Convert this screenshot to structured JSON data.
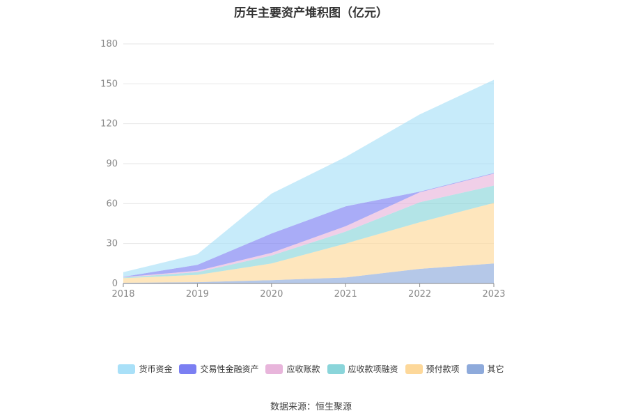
{
  "chart_data": {
    "type": "area",
    "stacked": true,
    "title": "历年主要资产堆积图（亿元）",
    "categories": [
      "2018",
      "2019",
      "2020",
      "2021",
      "2022",
      "2023"
    ],
    "ylim": [
      0,
      180
    ],
    "yticks": [
      0,
      30,
      60,
      90,
      120,
      150,
      180
    ],
    "grid": true,
    "legend_position": "bottom",
    "series": [
      {
        "name": "其它",
        "color": "#8eaadb",
        "values": [
          0.5,
          1.0,
          2.5,
          4.5,
          11.0,
          15.0
        ]
      },
      {
        "name": "预付款项",
        "color": "#fdd89a",
        "values": [
          3.5,
          5.5,
          12.5,
          25.5,
          35.0,
          45.5
        ]
      },
      {
        "name": "应收款项融资",
        "color": "#8ad5da",
        "values": [
          0.5,
          2.0,
          6.0,
          9.0,
          15.0,
          13.0
        ]
      },
      {
        "name": "应收账款",
        "color": "#e8b5db",
        "values": [
          0.3,
          1.0,
          2.0,
          4.0,
          7.5,
          9.0
        ]
      },
      {
        "name": "交易性金融资产",
        "color": "#7b7ff2",
        "values": [
          0.2,
          4.5,
          14.5,
          15.0,
          0.5,
          0.5
        ]
      },
      {
        "name": "货币资金",
        "color": "#a9e0f8",
        "values": [
          3.5,
          8.0,
          30.0,
          37.0,
          58.0,
          70.0
        ]
      }
    ],
    "legend_order": [
      "货币资金",
      "交易性金融资产",
      "应收账款",
      "应收款项融资",
      "预付款项",
      "其它"
    ]
  },
  "legend": {
    "items": [
      {
        "label": "货币资金",
        "color": "#a9e0f8"
      },
      {
        "label": "交易性金融资产",
        "color": "#7b7ff2"
      },
      {
        "label": "应收账款",
        "color": "#e8b5db"
      },
      {
        "label": "应收款项融资",
        "color": "#8ad5da"
      },
      {
        "label": "预付款项",
        "color": "#fdd89a"
      },
      {
        "label": "其它",
        "color": "#8eaadb"
      }
    ]
  },
  "source": "数据来源：恒生聚源"
}
